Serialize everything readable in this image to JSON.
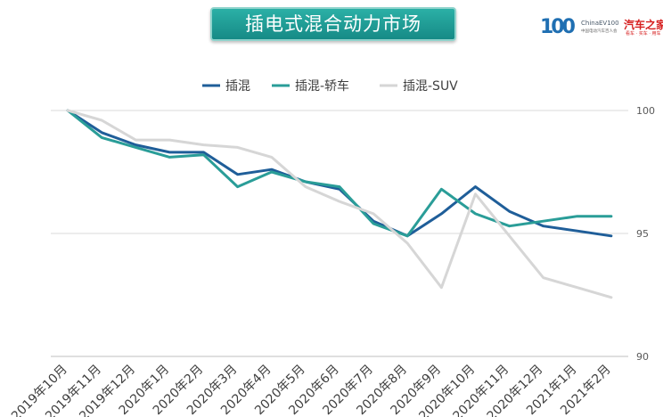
{
  "title": "插电式混合动力市场",
  "brand": {
    "number": "100",
    "name_en": "ChinaEV100",
    "name_cn_small": "中国电动汽车百人会",
    "partner": "汽车之家",
    "partner_sub": "看车 · 买车 · 用车"
  },
  "chart_data": {
    "type": "line",
    "categories": [
      "2019年10月",
      "2019年11月",
      "2019年12月",
      "2020年1月",
      "2020年2月",
      "2020年3月",
      "2020年4月",
      "2020年5月",
      "2020年6月",
      "2020年7月",
      "2020年8月",
      "2020年9月",
      "2020年10月",
      "2020年11月",
      "2020年12月",
      "2021年1月",
      "2021年2月"
    ],
    "ylim": [
      90,
      100
    ],
    "yticks": [
      90,
      95,
      100
    ],
    "grid": true,
    "legend_position": "top",
    "y_axis_side": "right",
    "series": [
      {
        "name": "插混",
        "color": "#1f5e99",
        "values": [
          100,
          99.1,
          98.6,
          98.3,
          98.3,
          97.4,
          97.6,
          97.1,
          96.8,
          95.5,
          94.9,
          95.8,
          96.9,
          95.9,
          95.3,
          95.1,
          94.9
        ]
      },
      {
        "name": "插混-轿车",
        "color": "#2a9d98",
        "values": [
          100,
          98.9,
          98.5,
          98.1,
          98.2,
          96.9,
          97.5,
          97.1,
          96.9,
          95.4,
          94.9,
          96.8,
          95.8,
          95.3,
          95.5,
          95.7,
          95.7
        ]
      },
      {
        "name": "插混-SUV",
        "color": "#d6d6d6",
        "values": [
          100,
          99.6,
          98.8,
          98.8,
          98.6,
          98.5,
          98.1,
          96.9,
          96.3,
          95.8,
          94.6,
          92.8,
          96.6,
          94.9,
          93.2,
          92.8,
          92.4
        ]
      }
    ]
  }
}
